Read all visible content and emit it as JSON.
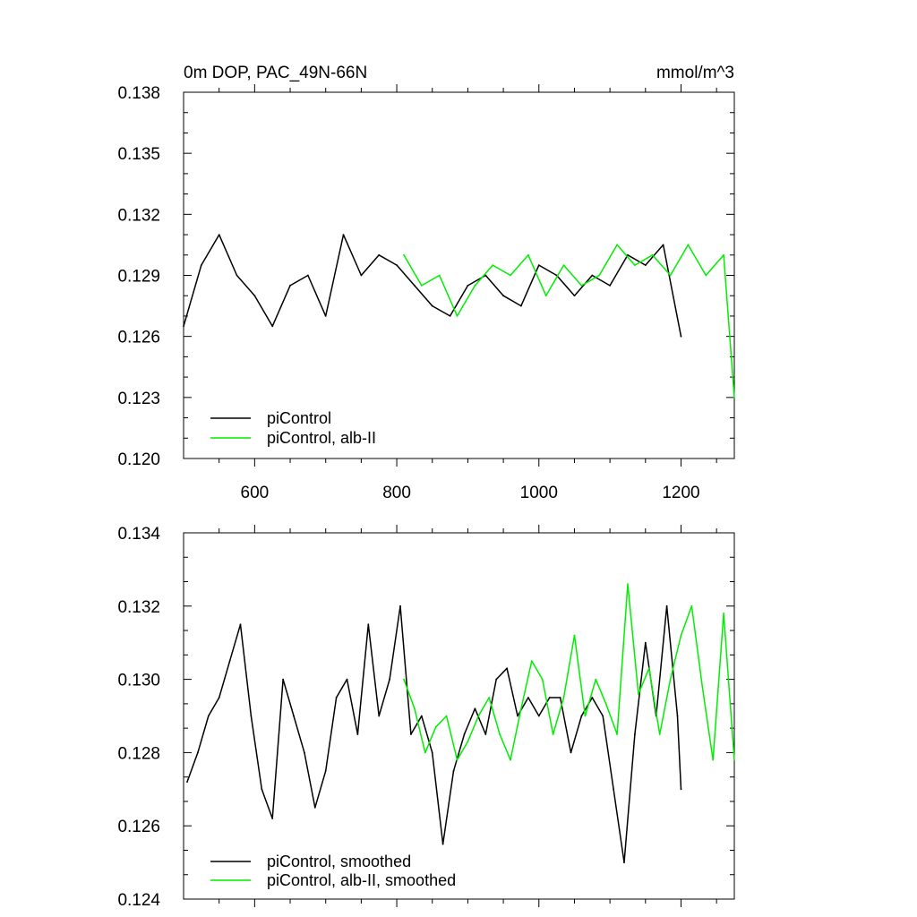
{
  "header": {
    "title": "0m DOP, PAC_49N-66N",
    "units": "mmol/m^3"
  },
  "colors": {
    "piControl": "#000000",
    "alb": "#00ee00",
    "background": "#ffffff"
  },
  "chart_data": [
    {
      "type": "line",
      "title": "0m DOP, PAC_49N-66N",
      "units": "mmol/m^3",
      "xlim": [
        500,
        1275
      ],
      "ylim": [
        0.12,
        0.138
      ],
      "xticks": [
        600,
        800,
        1000,
        1200
      ],
      "xticklabels": [
        "600",
        "800",
        "1000",
        "1200"
      ],
      "yticks": [
        0.12,
        0.123,
        0.126,
        0.129,
        0.132,
        0.135,
        0.138
      ],
      "yticklabels": [
        "0.120",
        "0.123",
        "0.126",
        "0.129",
        "0.132",
        "0.135",
        "0.138"
      ],
      "legend_position": "bottom-left",
      "series": [
        {
          "name": "piControl",
          "color": "#000000",
          "x": [
            500,
            525,
            550,
            575,
            600,
            625,
            650,
            675,
            700,
            725,
            750,
            775,
            800,
            825,
            850,
            875,
            900,
            925,
            950,
            975,
            1000,
            1025,
            1050,
            1075,
            1100,
            1125,
            1150,
            1175,
            1200
          ],
          "y": [
            0.1265,
            0.1295,
            0.131,
            0.129,
            0.128,
            0.1265,
            0.1285,
            0.129,
            0.127,
            0.131,
            0.129,
            0.13,
            0.1295,
            0.1285,
            0.1275,
            0.127,
            0.1285,
            0.129,
            0.128,
            0.1275,
            0.1295,
            0.129,
            0.128,
            0.129,
            0.1285,
            0.13,
            0.1295,
            0.1305,
            0.126
          ]
        },
        {
          "name": "piControl, alb-II",
          "color": "#00ee00",
          "x": [
            810,
            835,
            860,
            885,
            910,
            935,
            960,
            985,
            1010,
            1035,
            1060,
            1085,
            1110,
            1135,
            1160,
            1185,
            1210,
            1235,
            1260,
            1275
          ],
          "y": [
            0.13,
            0.1285,
            0.129,
            0.127,
            0.1285,
            0.1295,
            0.129,
            0.13,
            0.128,
            0.1295,
            0.1285,
            0.129,
            0.1305,
            0.1295,
            0.13,
            0.129,
            0.1305,
            0.129,
            0.13,
            0.123
          ]
        }
      ]
    },
    {
      "type": "line",
      "xlim": [
        500,
        1275
      ],
      "ylim": [
        0.124,
        0.134
      ],
      "xticks": [
        600,
        800,
        1000,
        1200
      ],
      "yticks": [
        0.124,
        0.126,
        0.128,
        0.13,
        0.132,
        0.134
      ],
      "yticklabels": [
        "0.124",
        "0.126",
        "0.128",
        "0.130",
        "0.132",
        "0.134"
      ],
      "legend_position": "bottom-left",
      "series": [
        {
          "name": "piControl, smoothed",
          "color": "#000000",
          "x": [
            505,
            520,
            535,
            550,
            565,
            580,
            595,
            610,
            625,
            640,
            655,
            670,
            685,
            700,
            715,
            730,
            745,
            760,
            775,
            790,
            805,
            820,
            835,
            850,
            865,
            880,
            895,
            910,
            925,
            940,
            955,
            970,
            985,
            1000,
            1015,
            1030,
            1045,
            1060,
            1075,
            1090,
            1105,
            1120,
            1135,
            1150,
            1165,
            1180,
            1195,
            1200
          ],
          "y": [
            0.1272,
            0.128,
            0.129,
            0.1295,
            0.1305,
            0.1315,
            0.129,
            0.127,
            0.1262,
            0.13,
            0.129,
            0.128,
            0.1265,
            0.1275,
            0.1295,
            0.13,
            0.1285,
            0.1315,
            0.129,
            0.13,
            0.132,
            0.1285,
            0.129,
            0.128,
            0.1255,
            0.1275,
            0.1285,
            0.1292,
            0.1285,
            0.13,
            0.1303,
            0.129,
            0.1295,
            0.129,
            0.1295,
            0.1295,
            0.128,
            0.129,
            0.1295,
            0.129,
            0.127,
            0.125,
            0.1285,
            0.131,
            0.129,
            0.132,
            0.129,
            0.127
          ]
        },
        {
          "name": "piControl, alb-II, smoothed",
          "color": "#00ee00",
          "x": [
            810,
            825,
            840,
            855,
            870,
            885,
            900,
            915,
            930,
            945,
            960,
            975,
            990,
            1005,
            1020,
            1035,
            1050,
            1065,
            1080,
            1095,
            1110,
            1125,
            1140,
            1155,
            1170,
            1185,
            1200,
            1215,
            1230,
            1245,
            1260,
            1275
          ],
          "y": [
            0.13,
            0.1292,
            0.128,
            0.1287,
            0.129,
            0.1278,
            0.1283,
            0.129,
            0.1295,
            0.1285,
            0.1278,
            0.1292,
            0.1305,
            0.13,
            0.1285,
            0.1295,
            0.1312,
            0.129,
            0.13,
            0.1293,
            0.1285,
            0.1326,
            0.1296,
            0.1303,
            0.1285,
            0.13,
            0.1312,
            0.132,
            0.1298,
            0.1278,
            0.1318,
            0.1278
          ]
        }
      ]
    }
  ],
  "legend": {
    "top": [
      "piControl",
      "piControl, alb-II"
    ],
    "bottom": [
      "piControl, smoothed",
      "piControl, alb-II, smoothed"
    ]
  }
}
